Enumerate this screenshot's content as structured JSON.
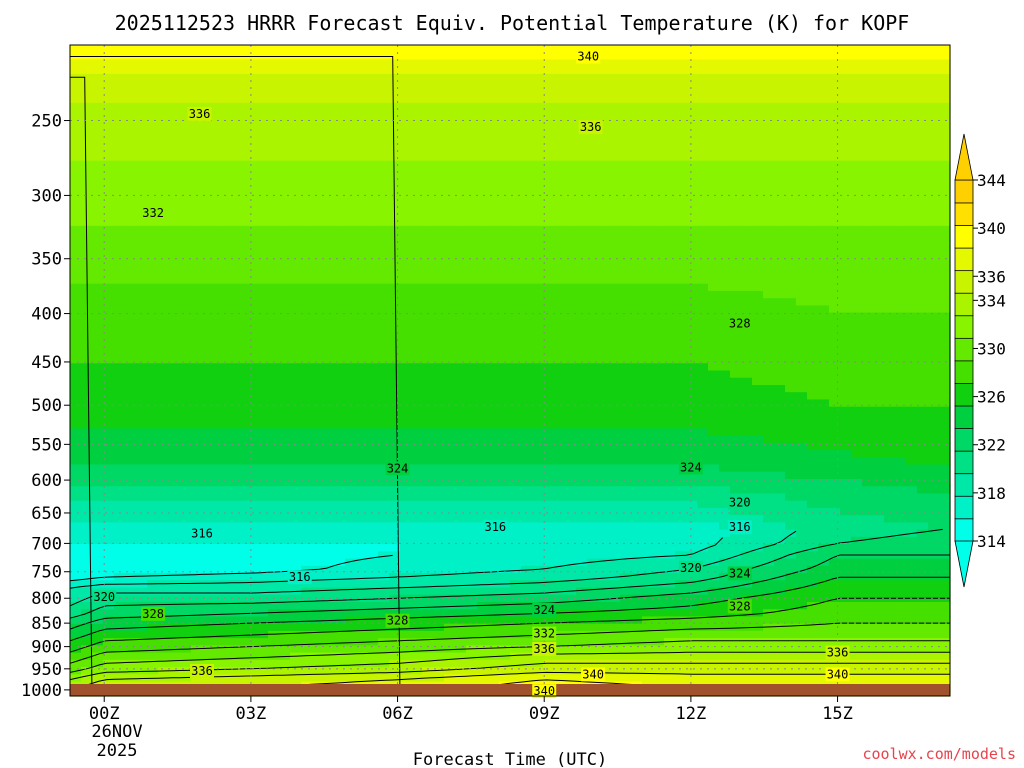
{
  "chart_data": {
    "type": "heatmap",
    "title": "2025112523 HRRR Forecast Equiv. Potential Temperature (K) for KOPF",
    "xlabel": "Forecast Time (UTC)",
    "ylabel": "",
    "x_ticks": [
      {
        "hour": 0,
        "label": "00Z"
      },
      {
        "hour": 3,
        "label": "03Z"
      },
      {
        "hour": 6,
        "label": "06Z"
      },
      {
        "hour": 9,
        "label": "09Z"
      },
      {
        "hour": 12,
        "label": "12Z"
      },
      {
        "hour": 15,
        "label": "15Z"
      }
    ],
    "x_date_line1": "26NOV",
    "x_date_line2": "2025",
    "xlim_hours": [
      -0.7,
      17.3
    ],
    "y_axis": "pressure (hPa), log scale, inverted",
    "y_ticks": [
      250,
      300,
      350,
      400,
      450,
      500,
      550,
      600,
      650,
      700,
      750,
      800,
      850,
      900,
      950,
      1000
    ],
    "ylim_hpa": [
      1015,
      208
    ],
    "colorbar": {
      "label_values": [
        314,
        318,
        322,
        326,
        330,
        334,
        336,
        340,
        344
      ],
      "levels": [
        314,
        316,
        318,
        320,
        322,
        324,
        326,
        328,
        330,
        332,
        334,
        336,
        338,
        340,
        342,
        344
      ]
    },
    "profiles": [
      {
        "hour": -0.7,
        "values": [
          [
            1015,
            337
          ],
          [
            975,
            334
          ],
          [
            950,
            331
          ],
          [
            925,
            329
          ],
          [
            900,
            327
          ],
          [
            875,
            325
          ],
          [
            850,
            323
          ],
          [
            830,
            321
          ],
          [
            800,
            319
          ],
          [
            780,
            318
          ],
          [
            760,
            315
          ],
          [
            745,
            314
          ],
          [
            720,
            315
          ],
          [
            700,
            316
          ],
          [
            675,
            317
          ],
          [
            650,
            319
          ],
          [
            620,
            321
          ],
          [
            600,
            323
          ],
          [
            560,
            325
          ],
          [
            500,
            327
          ],
          [
            450,
            328
          ],
          [
            400,
            329
          ],
          [
            350,
            331
          ],
          [
            300,
            333
          ],
          [
            250,
            335
          ],
          [
            230,
            337
          ],
          [
            220,
            339
          ],
          [
            208,
            341
          ]
        ]
      },
      {
        "hour": 0,
        "values": [
          [
            1015,
            339
          ],
          [
            975,
            336
          ],
          [
            950,
            333
          ],
          [
            925,
            331
          ],
          [
            900,
            329
          ],
          [
            875,
            327
          ],
          [
            850,
            325
          ],
          [
            830,
            323
          ],
          [
            800,
            321
          ],
          [
            780,
            319
          ],
          [
            760,
            316
          ],
          [
            745,
            314
          ],
          [
            720,
            315
          ],
          [
            700,
            316
          ],
          [
            675,
            317
          ],
          [
            650,
            319
          ],
          [
            620,
            321
          ],
          [
            600,
            323
          ],
          [
            560,
            325
          ],
          [
            500,
            327
          ],
          [
            450,
            328
          ],
          [
            400,
            329
          ],
          [
            350,
            331
          ],
          [
            300,
            333
          ],
          [
            250,
            335
          ],
          [
            230,
            337
          ],
          [
            220,
            339
          ],
          [
            208,
            341
          ]
        ]
      },
      {
        "hour": 3,
        "values": [
          [
            1015,
            339
          ],
          [
            975,
            337
          ],
          [
            950,
            334
          ],
          [
            925,
            332
          ],
          [
            900,
            330
          ],
          [
            875,
            328
          ],
          [
            850,
            326
          ],
          [
            830,
            324
          ],
          [
            800,
            321
          ],
          [
            780,
            319
          ],
          [
            760,
            317
          ],
          [
            745,
            315
          ],
          [
            720,
            315
          ],
          [
            700,
            316
          ],
          [
            675,
            317
          ],
          [
            650,
            319
          ],
          [
            620,
            321
          ],
          [
            600,
            323
          ],
          [
            560,
            325
          ],
          [
            500,
            327
          ],
          [
            450,
            328
          ],
          [
            400,
            329
          ],
          [
            350,
            331
          ],
          [
            300,
            333
          ],
          [
            250,
            335
          ],
          [
            230,
            337
          ],
          [
            220,
            339
          ],
          [
            208,
            341
          ]
        ]
      },
      {
        "hour": 6,
        "values": [
          [
            1015,
            340
          ],
          [
            975,
            338
          ],
          [
            950,
            335
          ],
          [
            925,
            333
          ],
          [
            900,
            331
          ],
          [
            875,
            329
          ],
          [
            850,
            327
          ],
          [
            830,
            325
          ],
          [
            800,
            322
          ],
          [
            780,
            320
          ],
          [
            760,
            318
          ],
          [
            745,
            317
          ],
          [
            720,
            316
          ],
          [
            700,
            316
          ],
          [
            675,
            317
          ],
          [
            650,
            319
          ],
          [
            620,
            321
          ],
          [
            600,
            323
          ],
          [
            560,
            325
          ],
          [
            500,
            327
          ],
          [
            450,
            328
          ],
          [
            400,
            329
          ],
          [
            350,
            331
          ],
          [
            300,
            333
          ],
          [
            250,
            335
          ],
          [
            230,
            337
          ],
          [
            220,
            339
          ],
          [
            208,
            341
          ]
        ]
      },
      {
        "hour": 9,
        "values": [
          [
            1015,
            342
          ],
          [
            975,
            340
          ],
          [
            950,
            337
          ],
          [
            925,
            335
          ],
          [
            900,
            332
          ],
          [
            875,
            330
          ],
          [
            850,
            328
          ],
          [
            830,
            326
          ],
          [
            800,
            323
          ],
          [
            780,
            321
          ],
          [
            760,
            319
          ],
          [
            745,
            318
          ],
          [
            720,
            317
          ],
          [
            700,
            316
          ],
          [
            675,
            317
          ],
          [
            650,
            319
          ],
          [
            620,
            321
          ],
          [
            600,
            323
          ],
          [
            560,
            325
          ],
          [
            500,
            327
          ],
          [
            450,
            328
          ],
          [
            400,
            329
          ],
          [
            350,
            331
          ],
          [
            300,
            333
          ],
          [
            250,
            335
          ],
          [
            230,
            337
          ],
          [
            220,
            339
          ],
          [
            208,
            341
          ]
        ]
      },
      {
        "hour": 12,
        "values": [
          [
            1015,
            341
          ],
          [
            975,
            339
          ],
          [
            950,
            337
          ],
          [
            925,
            335
          ],
          [
            900,
            333
          ],
          [
            875,
            331
          ],
          [
            850,
            329
          ],
          [
            830,
            327
          ],
          [
            800,
            325
          ],
          [
            780,
            323
          ],
          [
            760,
            321
          ],
          [
            745,
            320
          ],
          [
            720,
            318
          ],
          [
            700,
            317
          ],
          [
            675,
            317
          ],
          [
            650,
            319
          ],
          [
            620,
            321
          ],
          [
            600,
            323
          ],
          [
            560,
            325
          ],
          [
            500,
            327
          ],
          [
            450,
            328
          ],
          [
            400,
            329
          ],
          [
            350,
            331
          ],
          [
            300,
            333
          ],
          [
            250,
            335
          ],
          [
            230,
            337
          ],
          [
            220,
            339
          ],
          [
            208,
            341
          ]
        ]
      },
      {
        "hour": 15,
        "values": [
          [
            1015,
            341
          ],
          [
            975,
            339
          ],
          [
            950,
            337
          ],
          [
            925,
            335
          ],
          [
            900,
            333
          ],
          [
            875,
            331
          ],
          [
            850,
            330
          ],
          [
            830,
            329
          ],
          [
            800,
            328
          ],
          [
            780,
            327
          ],
          [
            760,
            326
          ],
          [
            745,
            325
          ],
          [
            720,
            324
          ],
          [
            700,
            322
          ],
          [
            675,
            321
          ],
          [
            650,
            322
          ],
          [
            620,
            323
          ],
          [
            600,
            324
          ],
          [
            560,
            326
          ],
          [
            500,
            328
          ],
          [
            450,
            329
          ],
          [
            400,
            330
          ],
          [
            350,
            331
          ],
          [
            300,
            333
          ],
          [
            250,
            335
          ],
          [
            230,
            337
          ],
          [
            220,
            339
          ],
          [
            208,
            341
          ]
        ]
      },
      {
        "hour": 17.3,
        "values": [
          [
            1015,
            341
          ],
          [
            975,
            339
          ],
          [
            950,
            337
          ],
          [
            925,
            335
          ],
          [
            900,
            333
          ],
          [
            875,
            331
          ],
          [
            850,
            330
          ],
          [
            830,
            329
          ],
          [
            800,
            328
          ],
          [
            780,
            327
          ],
          [
            760,
            326
          ],
          [
            745,
            325
          ],
          [
            720,
            324
          ],
          [
            700,
            323
          ],
          [
            675,
            322
          ],
          [
            650,
            323
          ],
          [
            620,
            324
          ],
          [
            600,
            325
          ],
          [
            560,
            327
          ],
          [
            500,
            328
          ],
          [
            450,
            329
          ],
          [
            400,
            330
          ],
          [
            350,
            331
          ],
          [
            300,
            333
          ],
          [
            250,
            335
          ],
          [
            230,
            337
          ],
          [
            220,
            339
          ],
          [
            208,
            341
          ]
        ]
      }
    ],
    "contour_labels": [
      {
        "value": 340,
        "hour": 9.9,
        "hpa": 214
      },
      {
        "value": 336,
        "hour": 1.95,
        "hpa": 246
      },
      {
        "value": 336,
        "hour": 9.95,
        "hpa": 254
      },
      {
        "value": 332,
        "hour": 1.0,
        "hpa": 313
      },
      {
        "value": 328,
        "hour": 13.0,
        "hpa": 410
      },
      {
        "value": 324,
        "hour": 6.0,
        "hpa": 583
      },
      {
        "value": 324,
        "hour": 12.0,
        "hpa": 582
      },
      {
        "value": 320,
        "hour": 13.0,
        "hpa": 634
      },
      {
        "value": 316,
        "hour": 2.0,
        "hpa": 683
      },
      {
        "value": 316,
        "hour": 8.0,
        "hpa": 673
      },
      {
        "value": 316,
        "hour": 13.0,
        "hpa": 673
      },
      {
        "value": 320,
        "hour": 12.0,
        "hpa": 743
      },
      {
        "value": 324,
        "hour": 13.0,
        "hpa": 753
      },
      {
        "value": 316,
        "hour": 4.0,
        "hpa": 760
      },
      {
        "value": 320,
        "hour": 0.0,
        "hpa": 798
      },
      {
        "value": 328,
        "hour": 1.0,
        "hpa": 831
      },
      {
        "value": 324,
        "hour": 9.0,
        "hpa": 823
      },
      {
        "value": 328,
        "hour": 6.0,
        "hpa": 845
      },
      {
        "value": 328,
        "hour": 13.0,
        "hpa": 816
      },
      {
        "value": 332,
        "hour": 9.0,
        "hpa": 872
      },
      {
        "value": 336,
        "hour": 9.0,
        "hpa": 905
      },
      {
        "value": 336,
        "hour": 15.0,
        "hpa": 913
      },
      {
        "value": 336,
        "hour": 2.0,
        "hpa": 955
      },
      {
        "value": 340,
        "hour": 10.0,
        "hpa": 963
      },
      {
        "value": 340,
        "hour": 15.0,
        "hpa": 963
      },
      {
        "value": 340,
        "hour": 9.0,
        "hpa": 1003
      }
    ]
  },
  "credit": "coolwx.com/models",
  "colors": {
    "palette": [
      "#00ffe8",
      "#00f0c8",
      "#00e8a8",
      "#00e084",
      "#00d866",
      "#00d040",
      "#10d010",
      "#46e000",
      "#64ea00",
      "#88f400",
      "#aaf400",
      "#c8f400",
      "#e4f800",
      "#ffff00",
      "#ffe000",
      "#ffd000"
    ],
    "ground": "#a0522d"
  }
}
